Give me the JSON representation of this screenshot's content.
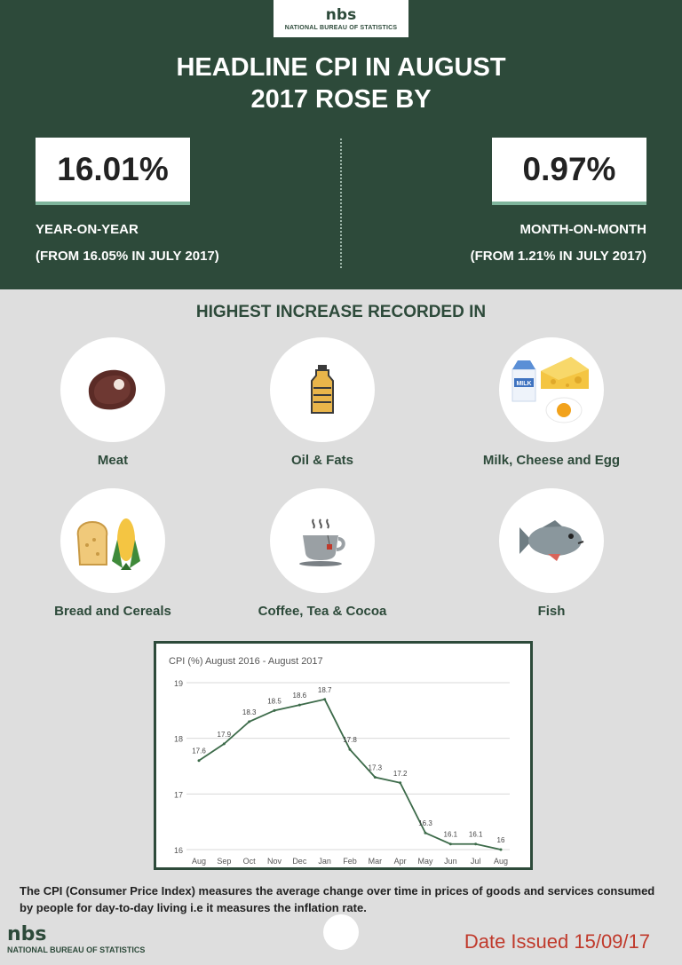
{
  "logo": {
    "mark": "nbs",
    "name": "NATIONAL BUREAU OF STATISTICS"
  },
  "headline": {
    "line1": "HEADLINE CPI IN AUGUST",
    "line2": "2017 ROSE BY"
  },
  "stats": {
    "yoy": {
      "value": "16.01%",
      "label": "YEAR-ON-YEAR",
      "sub": "(FROM 16.05% IN JULY 2017)"
    },
    "mom": {
      "value": "0.97%",
      "label": "MONTH-ON-MONTH",
      "sub": "(FROM 1.21% IN JULY 2017)"
    }
  },
  "section_title": "HIGHEST INCREASE RECORDED IN",
  "categories": [
    {
      "label": "Meat",
      "icon": "steak-icon"
    },
    {
      "label": "Oil & Fats",
      "icon": "oil-bottle-icon"
    },
    {
      "label": "Milk, Cheese and Egg",
      "icon": "milk-cheese-egg-icon"
    },
    {
      "label": "Bread and Cereals",
      "icon": "bread-corn-icon"
    },
    {
      "label": "Coffee, Tea & Cocoa",
      "icon": "tea-cup-icon"
    },
    {
      "label": "Fish",
      "icon": "fish-icon"
    }
  ],
  "icon_text": {
    "milk": "MILK"
  },
  "chart_data": {
    "type": "line",
    "title": "CPI (%) August 2016 - August 2017",
    "categories": [
      "Aug",
      "Sep",
      "Oct",
      "Nov",
      "Dec",
      "Jan",
      "Feb",
      "Mar",
      "Apr",
      "May",
      "Jun",
      "Jul",
      "Aug"
    ],
    "series": [
      {
        "values": [
          17.6,
          17.9,
          18.3,
          18.5,
          18.6,
          18.7,
          17.8,
          17.3,
          17.2,
          16.3,
          16.1,
          16.1,
          16.0
        ]
      }
    ],
    "point_labels": [
      "17.6",
      "17.9",
      "18.3",
      "18.5",
      "18.6",
      "18.7",
      "17.8",
      "17.3",
      "17.2",
      "16.3",
      "16.1",
      "16.1",
      "16"
    ],
    "yticks": [
      "16",
      "17",
      "18",
      "19"
    ],
    "ylim": [
      16,
      19
    ],
    "grid": true,
    "line_color": "#3d6b4a"
  },
  "footnote": "The CPI (Consumer Price Index) measures the average change over time in prices of goods and services consumed by people for day-to-day living i.e it measures the inflation rate.",
  "date_issued": "Date Issued 15/09/17",
  "colors": {
    "primary": "#2d4a3a",
    "accent": "#7fb59c",
    "date": "#c0392b"
  }
}
